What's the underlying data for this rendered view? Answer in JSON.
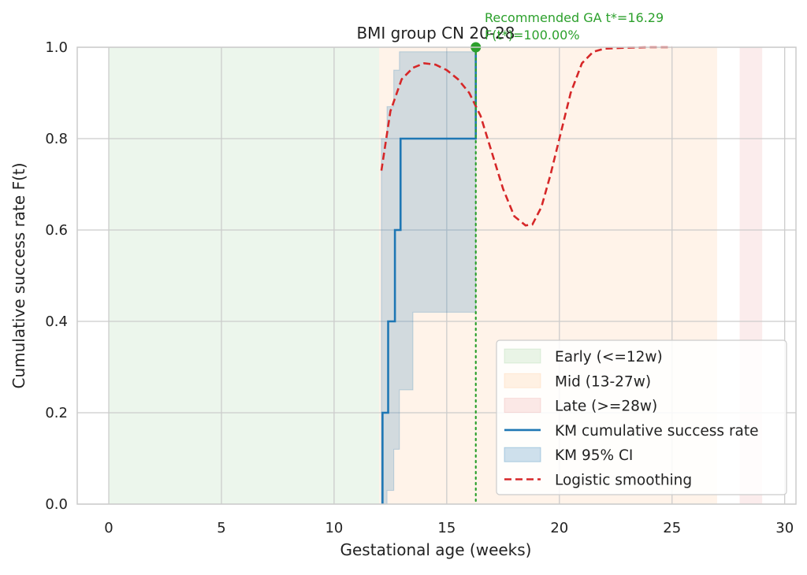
{
  "chart_data": {
    "type": "line",
    "title": "BMI group CN 20-28",
    "xlabel": "Gestational age (weeks)",
    "ylabel": "Cumulative success rate F(t)",
    "xlim": [
      -1.4,
      30.5
    ],
    "ylim": [
      0,
      1.0
    ],
    "x_ticks": [
      0,
      5,
      10,
      15,
      20,
      25,
      30
    ],
    "y_ticks": [
      0.0,
      0.2,
      0.4,
      0.6,
      0.8,
      1.0
    ],
    "x_tick_labels": [
      "0",
      "5",
      "10",
      "15",
      "20",
      "25",
      "30"
    ],
    "y_tick_labels": [
      "0.0",
      "0.2",
      "0.4",
      "0.6",
      "0.8",
      "1.0"
    ],
    "grid": true,
    "legend_position": "lower-right",
    "regions": [
      {
        "name": "Early (<=12w)",
        "x0": 0,
        "x1": 12,
        "color": "#2ca02c"
      },
      {
        "name": "Mid (13-27w)",
        "x0": 12,
        "x1": 27,
        "color": "#ff7f0e"
      },
      {
        "name": "Late (>=28w)",
        "x0": 28,
        "x1": 29,
        "color": "#d62728"
      }
    ],
    "km_curve": {
      "name": "KM cumulative success rate",
      "color": "#1f77b4",
      "x": [
        12.15,
        12.15,
        12.4,
        12.4,
        12.7,
        12.7,
        12.95,
        12.95,
        16.29,
        16.29
      ],
      "y": [
        0.0,
        0.2,
        0.2,
        0.4,
        0.4,
        0.6,
        0.6,
        0.8,
        0.8,
        1.0
      ]
    },
    "km_ci": {
      "name": "KM 95% CI",
      "color": "#1f77b4",
      "x": [
        12.1,
        12.35,
        12.65,
        12.9,
        13.5,
        16.29
      ],
      "lower": [
        0.0,
        0.03,
        0.12,
        0.25,
        0.42,
        0.42
      ],
      "upper": [
        0.8,
        0.87,
        0.95,
        0.99,
        0.99,
        0.99
      ]
    },
    "logistic": {
      "name": "Logistic smoothing",
      "color": "#d62728",
      "x": [
        12.1,
        12.5,
        13.0,
        13.5,
        14.0,
        14.5,
        15.0,
        15.5,
        16.0,
        16.5,
        17.0,
        17.5,
        18.0,
        18.5,
        18.8,
        19.2,
        19.6,
        20.0,
        20.5,
        21.0,
        21.5,
        22.0,
        23.0,
        24.0,
        25.0
      ],
      "y": [
        0.73,
        0.86,
        0.93,
        0.955,
        0.965,
        0.962,
        0.95,
        0.93,
        0.9,
        0.85,
        0.77,
        0.69,
        0.63,
        0.61,
        0.612,
        0.65,
        0.72,
        0.8,
        0.9,
        0.965,
        0.99,
        0.997,
        0.999,
        1.0,
        1.0
      ]
    },
    "recommended": {
      "x": 16.29,
      "y": 1.0,
      "color": "#2ca02c",
      "label_line1": "Recommended GA t*=16.29",
      "label_line2": "F(t*)=100.00%"
    },
    "legend": [
      {
        "label": "Early (<=12w)",
        "kind": "patch",
        "color": "#2ca02c"
      },
      {
        "label": "Mid (13-27w)",
        "kind": "patch",
        "color": "#ff7f0e"
      },
      {
        "label": "Late (>=28w)",
        "kind": "patch",
        "color": "#d62728"
      },
      {
        "label": "KM cumulative success rate",
        "kind": "line",
        "color": "#1f77b4"
      },
      {
        "label": "KM 95% CI",
        "kind": "patch-strong",
        "color": "#1f77b4"
      },
      {
        "label": "Logistic smoothing",
        "kind": "dashed",
        "color": "#d62728"
      }
    ]
  }
}
